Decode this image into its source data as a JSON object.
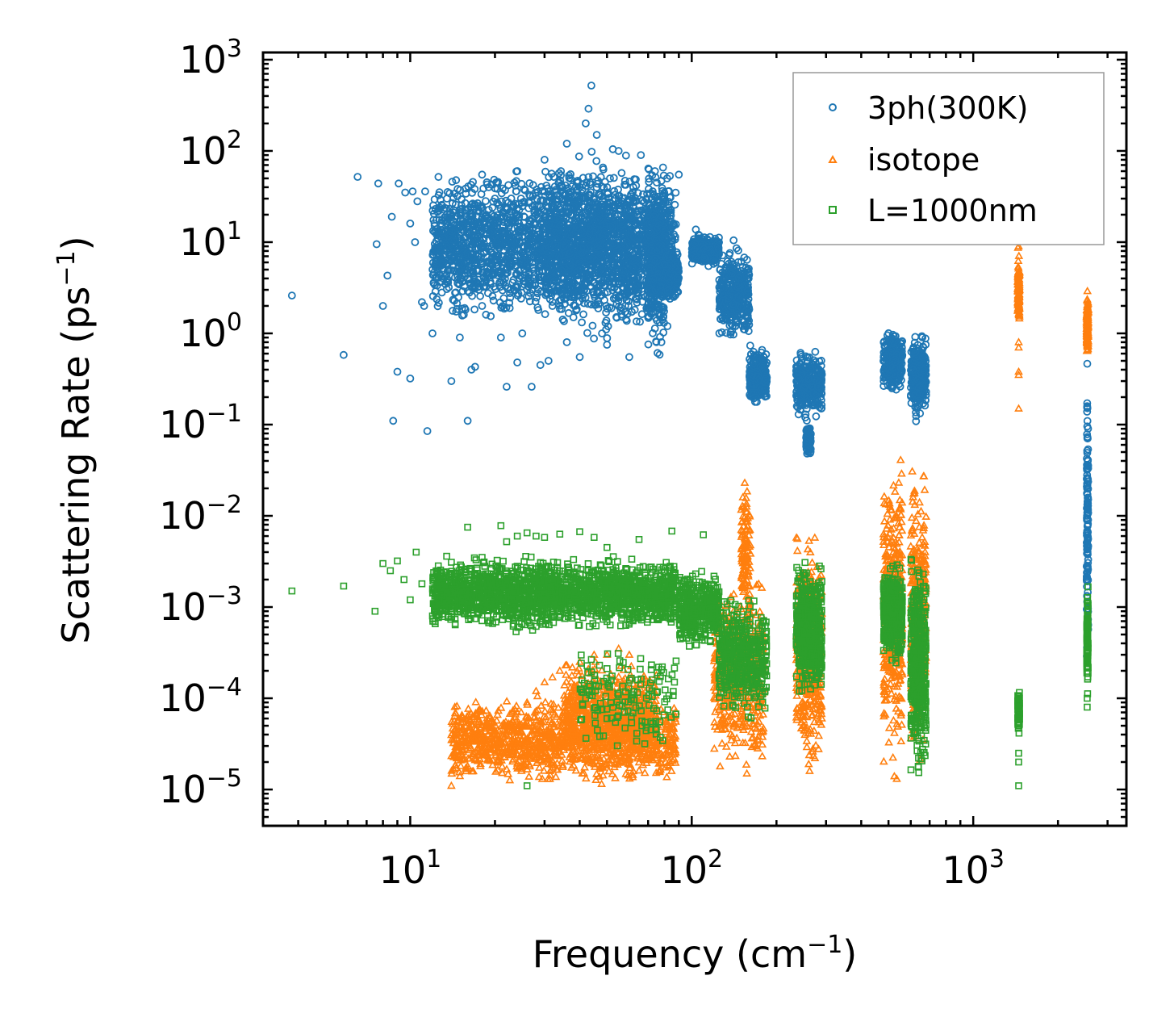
{
  "chart_data": {
    "type": "scatter",
    "title": "",
    "xlabel": "Frequency (cm",
    "xlabel_sup": "−1",
    "xlabel_end": ")",
    "ylabel": "Scattering Rate (ps",
    "ylabel_sup": "−1",
    "ylabel_end": ")",
    "xscale": "log",
    "yscale": "log",
    "xlim": [
      3.0,
      3500
    ],
    "ylim": [
      4e-06,
      1200
    ],
    "x_ticks": [
      {
        "value": 10,
        "base": "10",
        "exp": "1"
      },
      {
        "value": 100,
        "base": "10",
        "exp": "2"
      },
      {
        "value": 1000,
        "base": "10",
        "exp": "3"
      }
    ],
    "y_ticks": [
      {
        "value": 1e-05,
        "base": "10",
        "exp": "−5"
      },
      {
        "value": 0.0001,
        "base": "10",
        "exp": "−4"
      },
      {
        "value": 0.001,
        "base": "10",
        "exp": "−3"
      },
      {
        "value": 0.01,
        "base": "10",
        "exp": "−2"
      },
      {
        "value": 0.1,
        "base": "10",
        "exp": "−1"
      },
      {
        "value": 1,
        "base": "10",
        "exp": "0"
      },
      {
        "value": 10,
        "base": "10",
        "exp": "1"
      },
      {
        "value": 100,
        "base": "10",
        "exp": "2"
      },
      {
        "value": 1000,
        "base": "10",
        "exp": "3"
      }
    ],
    "legend_position": "top-right",
    "series": [
      {
        "name": "3ph(300K)",
        "marker": "circle",
        "color": "#1f77b4",
        "points": [
          [
            3.8,
            2.6
          ],
          [
            5.8,
            0.58
          ],
          [
            6.5,
            52
          ],
          [
            7.6,
            9.5
          ],
          [
            7.7,
            44
          ],
          [
            8.0,
            2.0
          ],
          [
            8.3,
            4.3
          ],
          [
            8.6,
            19
          ],
          [
            8.7,
            0.11
          ],
          [
            9.0,
            0.38
          ],
          [
            9.1,
            44
          ],
          [
            9.6,
            35
          ],
          [
            10.0,
            0.32
          ],
          [
            10.0,
            16
          ],
          [
            10.2,
            36
          ],
          [
            10.4,
            10
          ],
          [
            10.6,
            28
          ],
          [
            11.0,
            2.2
          ],
          [
            11.2,
            2.0
          ],
          [
            11.3,
            36
          ],
          [
            11.5,
            0.085
          ],
          [
            12.0,
            1.0
          ],
          [
            12.5,
            6.5
          ],
          [
            13.0,
            25
          ],
          [
            13.5,
            30
          ],
          [
            14.0,
            0.3
          ],
          [
            14.5,
            6.2
          ],
          [
            15.0,
            0.9
          ],
          [
            15.5,
            1.6
          ],
          [
            16.0,
            0.11
          ],
          [
            16.5,
            0.4
          ],
          [
            17.0,
            0.43
          ],
          [
            18.0,
            2.0
          ],
          [
            19.0,
            40
          ],
          [
            21.0,
            0.9
          ],
          [
            22.0,
            0.26
          ],
          [
            24.0,
            0.48
          ],
          [
            25.0,
            1.0
          ],
          [
            27.0,
            0.26
          ],
          [
            29.0,
            0.45
          ],
          [
            31.0,
            0.5
          ],
          [
            36.0,
            0.8
          ],
          [
            40.0,
            0.55
          ],
          [
            43.0,
            290
          ],
          [
            44.0,
            520
          ],
          [
            50.0,
            0.75
          ],
          [
            60.0,
            0.55
          ],
          [
            64.0,
            3.5
          ],
          [
            90.0,
            55
          ],
          [
            18.0,
            55
          ],
          [
            20.0,
            30
          ],
          [
            22.0,
            5.0
          ],
          [
            24.0,
            60
          ],
          [
            26.0,
            3.0
          ],
          [
            28.0,
            20
          ],
          [
            30.0,
            80
          ],
          [
            32.0,
            2.0
          ],
          [
            34.0,
            15
          ],
          [
            36.0,
            120
          ],
          [
            38.0,
            1.5
          ],
          [
            40.0,
            40
          ],
          [
            42.0,
            200
          ],
          [
            46.0,
            150
          ],
          [
            48.0,
            1.0
          ],
          [
            52.0,
            25
          ],
          [
            55.0,
            100
          ],
          [
            58.0,
            2.0
          ],
          [
            62.0,
            40
          ],
          [
            66.0,
            90
          ],
          [
            70.0,
            1.5
          ],
          [
            74.0,
            60
          ],
          [
            78.0,
            0.8
          ],
          [
            80.0,
            30
          ],
          [
            82.0,
            1.2
          ],
          [
            85.0,
            5.0
          ]
        ],
        "bands": [
          {
            "x_min": 12,
            "x_max": 88,
            "y_min": 1.0,
            "y_max": 80,
            "count": 2200
          },
          {
            "x_min": 30,
            "x_max": 65,
            "y_min": 0.6,
            "y_max": 150,
            "count": 700
          },
          {
            "x_min": 70,
            "x_max": 80,
            "y_min": 0.5,
            "y_max": 90,
            "count": 400
          },
          {
            "x_min": 80,
            "x_max": 90,
            "y_min": 2.0,
            "y_max": 9,
            "count": 200
          },
          {
            "x_min": 100,
            "x_max": 125,
            "y_min": 5.0,
            "y_max": 14,
            "count": 300
          },
          {
            "x_min": 125,
            "x_max": 160,
            "y_min": 0.7,
            "y_max": 11,
            "count": 350
          },
          {
            "x_min": 160,
            "x_max": 185,
            "y_min": 0.15,
            "y_max": 0.8,
            "count": 250
          },
          {
            "x_min": 235,
            "x_max": 290,
            "y_min": 0.1,
            "y_max": 0.7,
            "count": 300
          },
          {
            "x_min": 255,
            "x_max": 265,
            "y_min": 0.04,
            "y_max": 0.12,
            "count": 60
          },
          {
            "x_min": 480,
            "x_max": 560,
            "y_min": 0.2,
            "y_max": 1.2,
            "count": 250
          },
          {
            "x_min": 600,
            "x_max": 680,
            "y_min": 0.1,
            "y_max": 1.2,
            "count": 250
          },
          {
            "x_min": 2530,
            "x_max": 2560,
            "y_min": 0.0001,
            "y_max": 0.8,
            "count": 140
          }
        ]
      },
      {
        "name": "isotope",
        "marker": "triangle",
        "color": "#ff7f0e",
        "points": [
          [
            14.0,
            1.1e-05
          ],
          [
            15.0,
            1.4e-05
          ],
          [
            16.0,
            1.8e-05
          ],
          [
            17.0,
            2.1e-05
          ],
          [
            18.0,
            2.6e-05
          ],
          [
            19.0,
            3e-05
          ],
          [
            20.0,
            4e-05
          ],
          [
            22.0,
            5e-05
          ],
          [
            24.0,
            7e-05
          ],
          [
            26.0,
            9e-05
          ],
          [
            28.0,
            0.00012
          ],
          [
            30.0,
            0.00015
          ],
          [
            32.0,
            0.00017
          ],
          [
            34.0,
            0.0002
          ],
          [
            36.0,
            0.00023
          ],
          [
            40.0,
            0.00025
          ],
          [
            45.0,
            0.0003
          ],
          [
            50.0,
            0.0003
          ],
          [
            55.0,
            0.00035
          ],
          [
            60.0,
            0.0003
          ],
          [
            1450,
            0.15
          ],
          [
            1450,
            0.35
          ],
          [
            1450,
            0.38
          ],
          [
            1450,
            0.7
          ],
          [
            1450,
            0.8
          ],
          [
            1450,
            9.0
          ]
        ],
        "bands": [
          {
            "x_min": 14,
            "x_max": 88,
            "y_min": 1e-05,
            "y_max": 0.00012,
            "count": 1300
          },
          {
            "x_min": 35,
            "x_max": 75,
            "y_min": 2e-05,
            "y_max": 0.0003,
            "count": 500
          },
          {
            "x_min": 120,
            "x_max": 180,
            "y_min": 1e-05,
            "y_max": 0.003,
            "count": 500
          },
          {
            "x_min": 150,
            "x_max": 162,
            "y_min": 0.0005,
            "y_max": 0.035,
            "count": 120
          },
          {
            "x_min": 235,
            "x_max": 290,
            "y_min": 1e-05,
            "y_max": 0.009,
            "count": 450
          },
          {
            "x_min": 480,
            "x_max": 560,
            "y_min": 1e-05,
            "y_max": 0.07,
            "count": 350
          },
          {
            "x_min": 600,
            "x_max": 680,
            "y_min": 1e-05,
            "y_max": 0.065,
            "count": 320
          },
          {
            "x_min": 1440,
            "x_max": 1460,
            "y_min": 1.0,
            "y_max": 9.0,
            "count": 140
          },
          {
            "x_min": 2530,
            "x_max": 2560,
            "y_min": 0.5,
            "y_max": 3.0,
            "count": 140
          }
        ]
      },
      {
        "name": "L=1000nm",
        "marker": "square",
        "color": "#2ca02c",
        "points": [
          [
            3.8,
            0.0015
          ],
          [
            5.8,
            0.0017
          ],
          [
            7.5,
            0.0009
          ],
          [
            8.0,
            0.003
          ],
          [
            8.5,
            0.0025
          ],
          [
            9.0,
            0.0032
          ],
          [
            9.5,
            0.002
          ],
          [
            10.0,
            0.0012
          ],
          [
            10.5,
            0.004
          ],
          [
            11.0,
            0.0018
          ],
          [
            12.0,
            0.0008
          ],
          [
            13.0,
            0.0022
          ],
          [
            14.0,
            0.0031
          ],
          [
            16.0,
            0.0075
          ],
          [
            18.0,
            0.0035
          ],
          [
            21.0,
            0.0078
          ],
          [
            22.0,
            0.0052
          ],
          [
            24.0,
            0.006
          ],
          [
            26.0,
            0.0065
          ],
          [
            28.0,
            0.006
          ],
          [
            30.0,
            0.0058
          ],
          [
            34.0,
            0.0063
          ],
          [
            40.0,
            0.0067
          ],
          [
            45.0,
            0.0058
          ],
          [
            50.0,
            0.0045
          ],
          [
            65.0,
            0.0055
          ],
          [
            85.0,
            0.0068
          ],
          [
            42.0,
            0.0001
          ],
          [
            50.0,
            6e-05
          ],
          [
            26.0,
            1.1e-05
          ],
          [
            110,
            0.0062
          ],
          [
            1450,
            1.1e-05
          ],
          [
            1450,
            2e-05
          ],
          [
            1450,
            2.5e-05
          ],
          [
            2540,
            8e-05
          ],
          [
            2540,
            0.0001
          ]
        ],
        "bands": [
          {
            "x_min": 12,
            "x_max": 88,
            "y_min": 0.0005,
            "y_max": 0.004,
            "count": 2000
          },
          {
            "x_min": 40,
            "x_max": 88,
            "y_min": 2e-05,
            "y_max": 0.0005,
            "count": 150
          },
          {
            "x_min": 90,
            "x_max": 125,
            "y_min": 0.0003,
            "y_max": 0.003,
            "count": 400
          },
          {
            "x_min": 125,
            "x_max": 185,
            "y_min": 5e-05,
            "y_max": 0.0017,
            "count": 450
          },
          {
            "x_min": 235,
            "x_max": 290,
            "y_min": 8e-05,
            "y_max": 0.004,
            "count": 500
          },
          {
            "x_min": 480,
            "x_max": 560,
            "y_min": 0.0002,
            "y_max": 0.0035,
            "count": 450
          },
          {
            "x_min": 600,
            "x_max": 680,
            "y_min": 1e-05,
            "y_max": 0.005,
            "count": 450
          },
          {
            "x_min": 1440,
            "x_max": 1460,
            "y_min": 4e-05,
            "y_max": 0.00013,
            "count": 100
          },
          {
            "x_min": 2530,
            "x_max": 2560,
            "y_min": 0.0001,
            "y_max": 0.002,
            "count": 100
          }
        ]
      }
    ]
  }
}
